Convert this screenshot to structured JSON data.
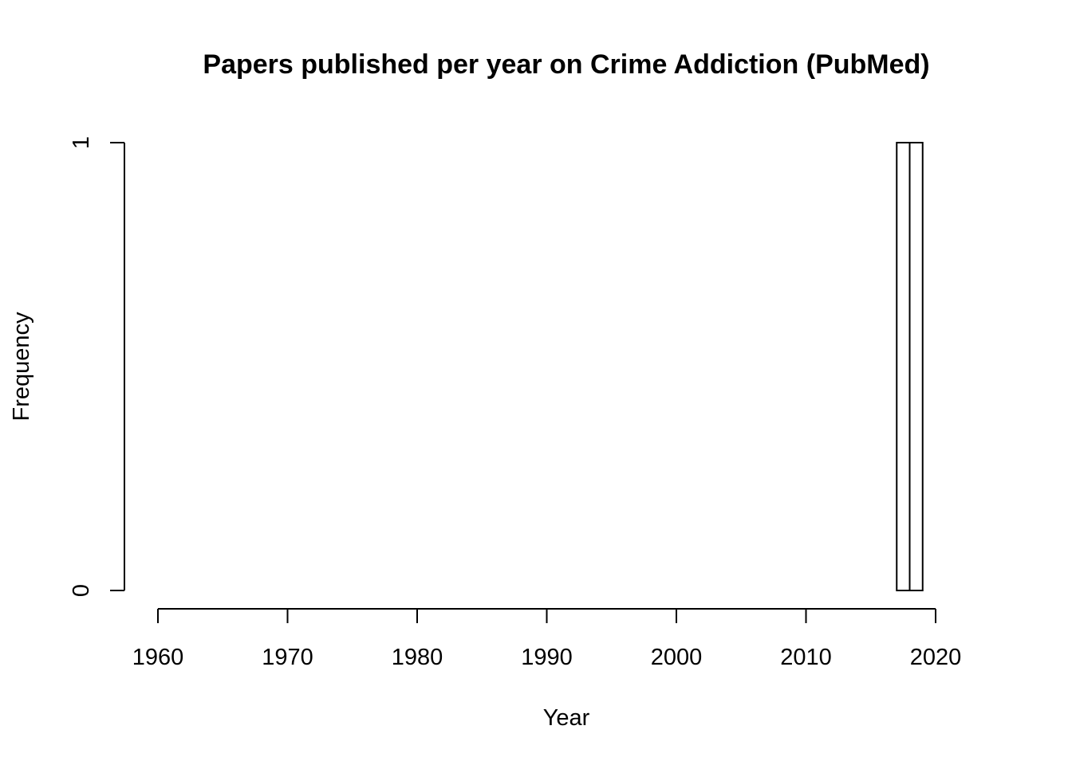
{
  "chart_data": {
    "type": "bar",
    "title": "Papers published per year on Crime Addiction (PubMed)",
    "xlabel": "Year",
    "ylabel": "Frequency",
    "xlim": [
      1960,
      2020
    ],
    "ylim": [
      0,
      1
    ],
    "x_ticks": [
      1960,
      1970,
      1980,
      1990,
      2000,
      2010,
      2020
    ],
    "y_ticks": [
      0,
      1
    ],
    "grid": false,
    "bar_fill": "#ffffff",
    "bar_stroke": "#000000",
    "bars": [
      {
        "x_start": 2017,
        "x_end": 2018,
        "value": 1
      },
      {
        "x_start": 2018,
        "x_end": 2019,
        "value": 1
      }
    ]
  }
}
